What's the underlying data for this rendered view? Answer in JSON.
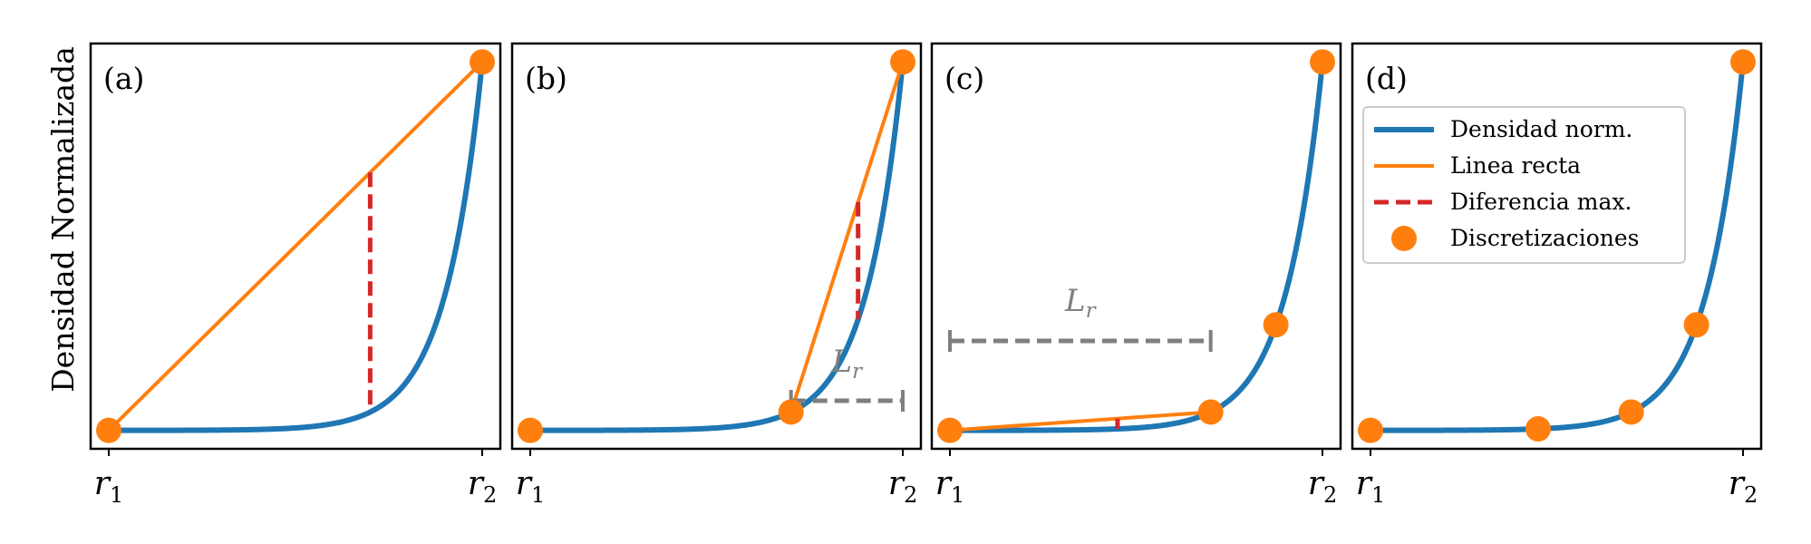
{
  "chart_data": [
    {
      "type": "line",
      "panel_label": "(a)",
      "ylabel": "Densidad Normalizada",
      "x_ticks": [
        {
          "base": "r",
          "sub": "1"
        },
        {
          "base": "r",
          "sub": "2"
        }
      ],
      "xlim": [
        0,
        1
      ],
      "ylim": [
        -0.05,
        1.05
      ],
      "curve": {
        "name": "Densidad norm.",
        "color": "#1f77b4",
        "k": 10
      },
      "discretizations": [
        0,
        1
      ],
      "straight_line": [
        0,
        1
      ],
      "max_difference_x": 0.7,
      "Lr": null,
      "legend": false
    },
    {
      "type": "line",
      "panel_label": "(b)",
      "ylabel": "",
      "x_ticks": [
        {
          "base": "r",
          "sub": "1"
        },
        {
          "base": "r",
          "sub": "2"
        }
      ],
      "xlim": [
        0,
        1
      ],
      "ylim": [
        -0.05,
        1.05
      ],
      "curve": {
        "name": "Densidad norm.",
        "color": "#1f77b4",
        "k": 10
      },
      "discretizations": [
        0,
        0.7,
        1
      ],
      "straight_line": [
        0.7,
        1
      ],
      "max_difference_x": 0.88,
      "Lr": {
        "text_base": "L",
        "text_sub": "r",
        "from": 0.7,
        "to": 1.0
      },
      "legend": false
    },
    {
      "type": "line",
      "panel_label": "(c)",
      "ylabel": "",
      "x_ticks": [
        {
          "base": "r",
          "sub": "1"
        },
        {
          "base": "r",
          "sub": "2"
        }
      ],
      "xlim": [
        0,
        1
      ],
      "ylim": [
        -0.05,
        1.05
      ],
      "curve": {
        "name": "Densidad norm.",
        "color": "#1f77b4",
        "k": 10
      },
      "discretizations": [
        0,
        0.7,
        0.875,
        1
      ],
      "straight_line": [
        0,
        0.7
      ],
      "max_difference_x": 0.45,
      "Lr": {
        "text_base": "L",
        "text_sub": "r",
        "from": 0.0,
        "to": 0.7
      },
      "legend": false
    },
    {
      "type": "line",
      "panel_label": "(d)",
      "ylabel": "",
      "x_ticks": [
        {
          "base": "r",
          "sub": "1"
        },
        {
          "base": "r",
          "sub": "2"
        }
      ],
      "xlim": [
        0,
        1
      ],
      "ylim": [
        -0.05,
        1.05
      ],
      "curve": {
        "name": "Densidad norm.",
        "color": "#1f77b4",
        "k": 10
      },
      "discretizations": [
        0,
        0.45,
        0.7,
        0.875,
        1
      ],
      "straight_line": null,
      "max_difference_x": null,
      "Lr": null,
      "legend": true,
      "legend_location": "upper-left",
      "legend_entries": [
        {
          "label": "Densidad norm.",
          "kind": "thick-line",
          "color": "#1f77b4"
        },
        {
          "label": "Linea recta",
          "kind": "line",
          "color": "#ff7f0e"
        },
        {
          "label": "Diferencia max.",
          "kind": "dashed-line",
          "color": "#d62728"
        },
        {
          "label": "Discretizaciones",
          "kind": "marker",
          "color": "#ff7f0e"
        }
      ]
    }
  ],
  "colors": {
    "density": "#1f77b4",
    "line": "#ff7f0e",
    "difference": "#d62728",
    "lr": "#7f7f7f"
  }
}
